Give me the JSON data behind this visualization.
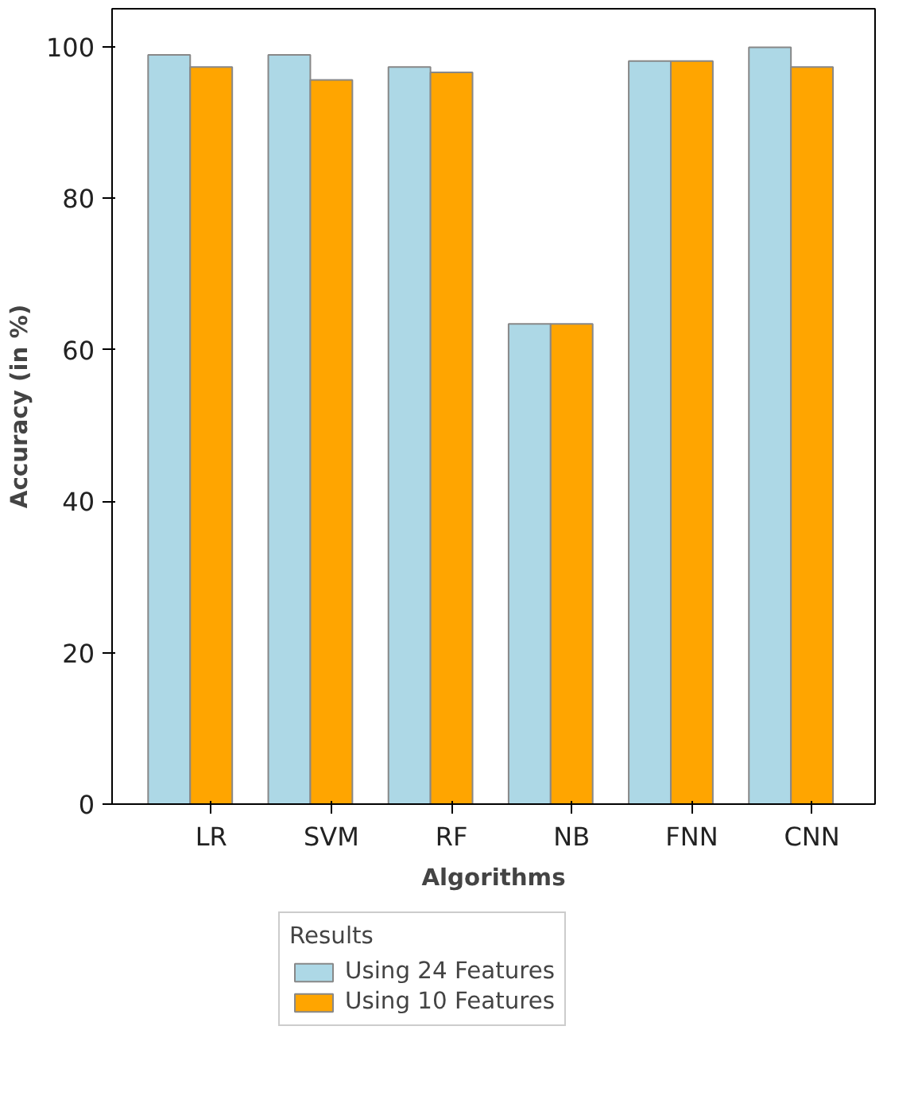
{
  "chart_data": {
    "type": "bar",
    "xlabel": "Algorithms",
    "ylabel": "Accuracy (in %)",
    "legend_title": "Results",
    "categories": [
      "LR",
      "SVM",
      "RF",
      "NB",
      "FNN",
      "CNN"
    ],
    "series": [
      {
        "name": "Using 24 Features",
        "color": "#add8e6",
        "values": [
          98.9,
          98.9,
          97.3,
          63.4,
          98.1,
          99.9
        ]
      },
      {
        "name": "Using 10 Features",
        "color": "#ffa500",
        "values": [
          97.3,
          95.6,
          96.6,
          63.4,
          98.1,
          97.3
        ]
      }
    ],
    "ylim": [
      0,
      105
    ],
    "yticks": [
      0,
      20,
      40,
      60,
      80,
      100
    ],
    "grid": false,
    "legend": "bottom"
  }
}
